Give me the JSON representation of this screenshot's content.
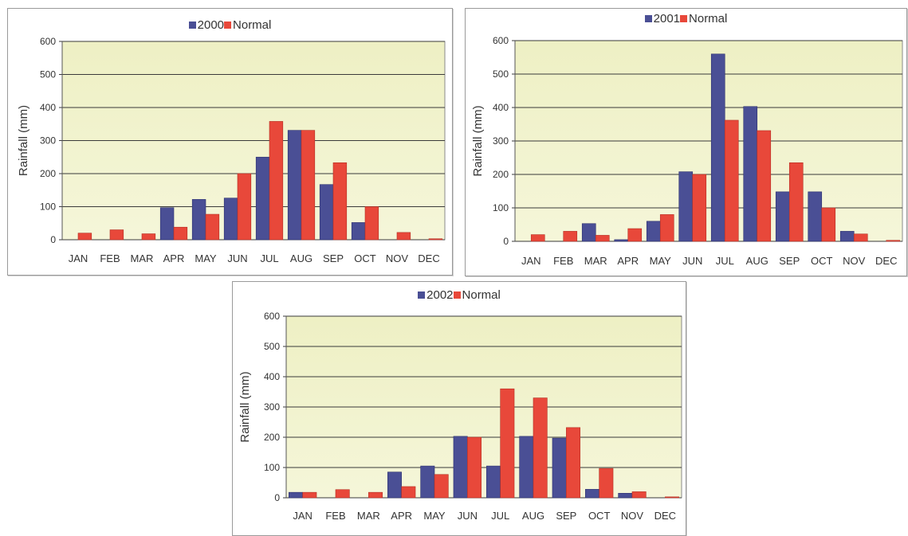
{
  "colors": {
    "series_year": "#4a4f95",
    "series_normal": "#e8483a",
    "plot_bg": "#f5f6d9",
    "grid": "#3a3a3a"
  },
  "chart_data": [
    {
      "type": "bar",
      "categories": [
        "JAN",
        "FEB",
        "MAR",
        "APR",
        "MAY",
        "JUN",
        "JUL",
        "AUG",
        "SEP",
        "OCT",
        "NOV",
        "DEC"
      ],
      "series": [
        {
          "name": "2000",
          "values": [
            0,
            0,
            0,
            97,
            122,
            126,
            250,
            331,
            167,
            52,
            0,
            0
          ]
        },
        {
          "name": "Normal",
          "values": [
            20,
            30,
            18,
            38,
            77,
            200,
            358,
            331,
            233,
            100,
            22,
            3
          ]
        }
      ],
      "ylabel": "Rainfall (mm)",
      "ylim": [
        0,
        600
      ],
      "yticks": [
        0,
        100,
        200,
        300,
        400,
        500,
        600
      ],
      "grid": true,
      "legend": "top-center"
    },
    {
      "type": "bar",
      "categories": [
        "JAN",
        "FEB",
        "MAR",
        "APR",
        "MAY",
        "JUN",
        "JUL",
        "AUG",
        "SEP",
        "OCT",
        "NOV",
        "DEC"
      ],
      "series": [
        {
          "name": "2001",
          "values": [
            0,
            0,
            53,
            5,
            60,
            208,
            560,
            403,
            148,
            148,
            30,
            0
          ]
        },
        {
          "name": "Normal",
          "values": [
            20,
            30,
            18,
            38,
            80,
            200,
            362,
            331,
            235,
            100,
            22,
            3
          ]
        }
      ],
      "ylabel": "Rainfall (mm)",
      "ylim": [
        0,
        600
      ],
      "yticks": [
        0,
        100,
        200,
        300,
        400,
        500,
        600
      ],
      "grid": true,
      "legend": "top-center"
    },
    {
      "type": "bar",
      "categories": [
        "JAN",
        "FEB",
        "MAR",
        "APR",
        "MAY",
        "JUN",
        "JUL",
        "AUG",
        "SEP",
        "OCT",
        "NOV",
        "DEC"
      ],
      "series": [
        {
          "name": "2002",
          "values": [
            18,
            0,
            0,
            85,
            105,
            203,
            105,
            203,
            197,
            28,
            15,
            0
          ]
        },
        {
          "name": "Normal",
          "values": [
            18,
            27,
            18,
            37,
            77,
            200,
            360,
            330,
            232,
            97,
            20,
            3
          ]
        }
      ],
      "ylabel": "Rainfall (mm)",
      "ylim": [
        0,
        600
      ],
      "yticks": [
        0,
        100,
        200,
        300,
        400,
        500,
        600
      ],
      "grid": true,
      "legend": "top-center"
    }
  ]
}
